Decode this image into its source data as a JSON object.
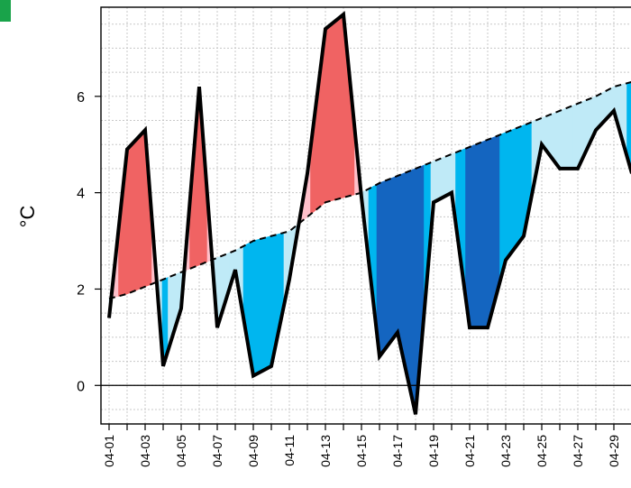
{
  "chart_data": {
    "type": "area",
    "ylabel": "°C",
    "ylim": [
      -0.8,
      7.85
    ],
    "yticks": [
      0,
      2,
      4,
      6
    ],
    "grid": true,
    "legend": "none",
    "x": [
      "04-01",
      "04-02",
      "04-03",
      "04-04",
      "04-05",
      "04-06",
      "04-07",
      "04-08",
      "04-09",
      "04-10",
      "04-11",
      "04-12",
      "04-13",
      "04-14",
      "04-15",
      "04-16",
      "04-17",
      "04-18",
      "04-19",
      "04-20",
      "04-21",
      "04-22",
      "04-23",
      "04-24",
      "04-25",
      "04-26",
      "04-27",
      "04-28",
      "04-29",
      "04-30"
    ],
    "xtick_labels": [
      "04-01",
      "04-03",
      "04-05",
      "04-07",
      "04-09",
      "04-11",
      "04-13",
      "04-15",
      "04-17",
      "04-19",
      "04-21",
      "04-23",
      "04-25",
      "04-27",
      "04-29"
    ],
    "series": [
      {
        "values": [
          1.4,
          4.9,
          5.3,
          0.4,
          1.6,
          6.2,
          1.2,
          2.4,
          0.2,
          0.4,
          2.2,
          4.4,
          7.4,
          7.7,
          3.9,
          0.6,
          1.1,
          -0.6,
          3.8,
          4.0,
          1.2,
          1.2,
          2.6,
          3.1,
          5.0,
          4.5,
          4.5,
          5.3,
          5.7,
          4.4
        ],
        "style": "solid"
      },
      {
        "values": [
          1.8,
          1.9,
          2.05,
          2.2,
          2.35,
          2.5,
          2.65,
          2.8,
          3.0,
          3.1,
          3.2,
          3.5,
          3.8,
          3.9,
          4.0,
          4.2,
          4.35,
          4.5,
          4.65,
          4.8,
          4.95,
          5.1,
          5.25,
          5.4,
          5.55,
          5.7,
          5.85,
          6.0,
          6.2,
          6.3
        ],
        "style": "dashed"
      }
    ],
    "colors": {
      "above_near": "#ffc0cb",
      "above_far": "#f06464",
      "below_near": "#bfeaf7",
      "below_mid": "#00b7ef",
      "below_far": "#1566c0",
      "line": "#000000",
      "grid": "#c8c8c8"
    }
  }
}
